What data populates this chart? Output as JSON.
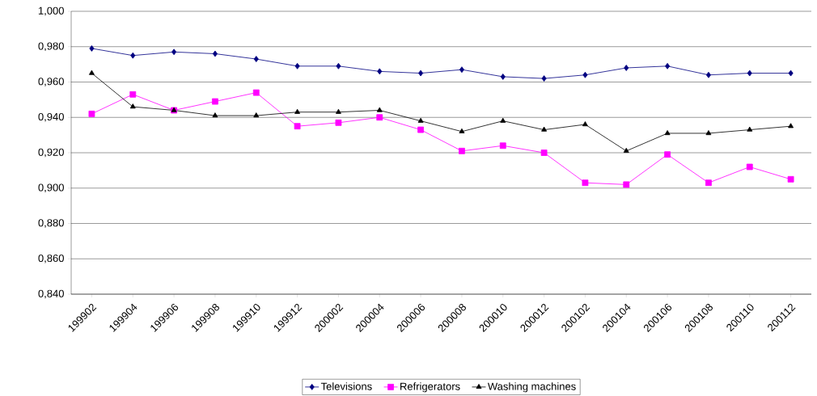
{
  "chart_data": {
    "type": "line",
    "categories": [
      "199902",
      "199904",
      "199906",
      "199908",
      "199910",
      "199912",
      "200002",
      "200004",
      "200006",
      "200008",
      "200010",
      "200012",
      "200102",
      "200104",
      "200106",
      "200108",
      "200110",
      "200112"
    ],
    "series": [
      {
        "name": "Televisions",
        "color": "#000080",
        "marker": "diamond",
        "values": [
          0.979,
          0.975,
          0.977,
          0.976,
          0.973,
          0.969,
          0.969,
          0.966,
          0.965,
          0.967,
          0.963,
          0.962,
          0.964,
          0.968,
          0.969,
          0.964,
          0.965,
          0.965
        ]
      },
      {
        "name": "Refrigerators",
        "color": "#ff00ff",
        "marker": "square",
        "values": [
          0.942,
          0.953,
          0.944,
          0.949,
          0.954,
          0.935,
          0.937,
          0.94,
          0.933,
          0.921,
          0.924,
          0.92,
          0.903,
          0.902,
          0.919,
          0.903,
          0.912,
          0.905
        ]
      },
      {
        "name": "Washing machines",
        "color": "#000000",
        "marker": "triangle",
        "values": [
          0.965,
          0.946,
          0.944,
          0.941,
          0.941,
          0.943,
          0.943,
          0.944,
          0.938,
          0.932,
          0.938,
          0.933,
          0.936,
          0.921,
          0.931,
          0.931,
          0.933,
          0.935
        ]
      }
    ],
    "ylim": [
      0.84,
      1.0
    ],
    "yticks": [
      {
        "value": 0.84,
        "label": "0,840"
      },
      {
        "value": 0.86,
        "label": "0,860"
      },
      {
        "value": 0.88,
        "label": "0,880"
      },
      {
        "value": 0.9,
        "label": "0,900"
      },
      {
        "value": 0.92,
        "label": "0,920"
      },
      {
        "value": 0.94,
        "label": "0,940"
      },
      {
        "value": 0.96,
        "label": "0,960"
      },
      {
        "value": 0.98,
        "label": "0,980"
      },
      {
        "value": 1.0,
        "label": "1,000"
      }
    ],
    "grid": "y",
    "legend": "bottom",
    "line_style": "solid"
  }
}
